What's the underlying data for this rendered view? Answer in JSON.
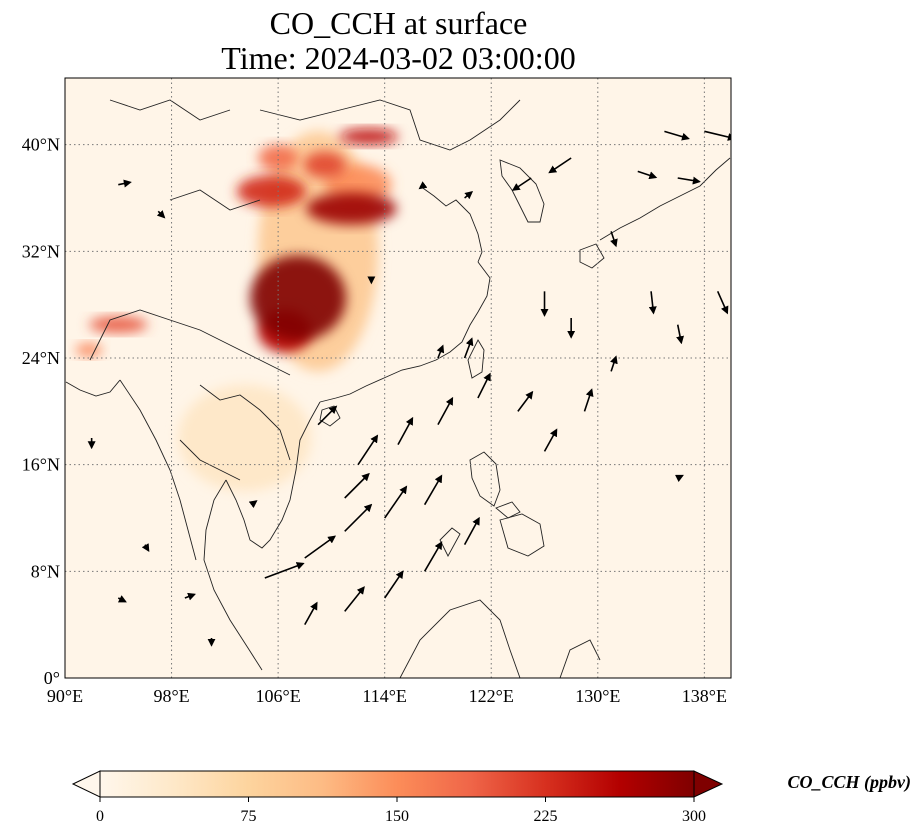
{
  "title": {
    "line1": "CO_CCH at surface",
    "line2": "Time: 2024-03-02 03:00:00"
  },
  "map": {
    "projection": "PlateCarree",
    "lon_range": [
      90,
      140
    ],
    "lat_range": [
      0,
      45
    ],
    "gridlines": "dotted",
    "background_color": "#fff5e8"
  },
  "axes": {
    "x_ticks": [
      {
        "value": 90,
        "label": "90°E"
      },
      {
        "value": 98,
        "label": "98°E"
      },
      {
        "value": 106,
        "label": "106°E"
      },
      {
        "value": 114,
        "label": "114°E"
      },
      {
        "value": 122,
        "label": "122°E"
      },
      {
        "value": 130,
        "label": "130°E"
      },
      {
        "value": 138,
        "label": "138°E"
      }
    ],
    "y_ticks": [
      {
        "value": 0,
        "label": "0°"
      },
      {
        "value": 8,
        "label": "8°N"
      },
      {
        "value": 16,
        "label": "16°N"
      },
      {
        "value": 24,
        "label": "24°N"
      },
      {
        "value": 32,
        "label": "32°N"
      },
      {
        "value": 40,
        "label": "40°N"
      }
    ]
  },
  "colorbar": {
    "label": "CO_CCH (ppbv)",
    "min": 0,
    "max": 300,
    "colormap": "OrRd",
    "extend": "both",
    "ticks": [
      {
        "value": 0,
        "label": "0"
      },
      {
        "value": 75,
        "label": "75"
      },
      {
        "value": 150,
        "label": "150"
      },
      {
        "value": 225,
        "label": "225"
      },
      {
        "value": 300,
        "label": "300"
      }
    ],
    "stops": [
      "#fff7ec",
      "#fee8c8",
      "#fdd49e",
      "#fdbb84",
      "#fc8d59",
      "#ef6548",
      "#d7301f",
      "#b30000",
      "#7f0000"
    ]
  },
  "concentration_fields": [
    {
      "lon": 107.5,
      "lat": 28.5,
      "rx": 3.6,
      "ry": 3.2,
      "value": 300
    },
    {
      "lon": 106.5,
      "lat": 26.0,
      "rx": 2.0,
      "ry": 1.6,
      "value": 260
    },
    {
      "lon": 111.5,
      "lat": 35.2,
      "rx": 3.4,
      "ry": 1.2,
      "value": 280
    },
    {
      "lon": 105.5,
      "lat": 36.5,
      "rx": 2.6,
      "ry": 1.2,
      "value": 230
    },
    {
      "lon": 109.5,
      "lat": 38.5,
      "rx": 1.6,
      "ry": 1.0,
      "value": 210
    },
    {
      "lon": 112.8,
      "lat": 40.6,
      "rx": 2.2,
      "ry": 0.6,
      "value": 250
    },
    {
      "lon": 109.0,
      "lat": 32.0,
      "rx": 4.5,
      "ry": 9.0,
      "value": 90
    },
    {
      "lon": 103.5,
      "lat": 18.0,
      "rx": 5.0,
      "ry": 4.0,
      "value": 40
    },
    {
      "lon": 94.0,
      "lat": 26.5,
      "rx": 2.2,
      "ry": 0.6,
      "value": 200
    },
    {
      "lon": 91.8,
      "lat": 24.6,
      "rx": 1.0,
      "ry": 0.5,
      "value": 160
    },
    {
      "lon": 106.0,
      "lat": 39.0,
      "rx": 1.5,
      "ry": 1.0,
      "value": 180
    },
    {
      "lon": 112.0,
      "lat": 37.0,
      "rx": 2.5,
      "ry": 1.5,
      "value": 150
    }
  ],
  "wind_vectors": [
    {
      "lon": 105,
      "lat": 7.5,
      "u": 3.2,
      "v": 1.2
    },
    {
      "lon": 108,
      "lat": 9,
      "u": 2.5,
      "v": 1.8
    },
    {
      "lon": 111,
      "lat": 11,
      "u": 2.2,
      "v": 2.2
    },
    {
      "lon": 114,
      "lat": 12,
      "u": 1.8,
      "v": 2.6
    },
    {
      "lon": 117,
      "lat": 13,
      "u": 1.4,
      "v": 2.4
    },
    {
      "lon": 112,
      "lat": 16,
      "u": 1.6,
      "v": 2.4
    },
    {
      "lon": 115,
      "lat": 17.5,
      "u": 1.2,
      "v": 2.2
    },
    {
      "lon": 118,
      "lat": 19,
      "u": 1.2,
      "v": 2.2
    },
    {
      "lon": 121,
      "lat": 21,
      "u": 1.0,
      "v": 2.0
    },
    {
      "lon": 109,
      "lat": 19,
      "u": 1.5,
      "v": 1.5
    },
    {
      "lon": 111,
      "lat": 13.5,
      "u": 2.0,
      "v": 2.0
    },
    {
      "lon": 108,
      "lat": 4,
      "u": 1.0,
      "v": 1.8
    },
    {
      "lon": 111,
      "lat": 5,
      "u": 1.6,
      "v": 2.0
    },
    {
      "lon": 114,
      "lat": 6,
      "u": 1.5,
      "v": 2.2
    },
    {
      "lon": 117,
      "lat": 8,
      "u": 1.4,
      "v": 2.4
    },
    {
      "lon": 120,
      "lat": 10,
      "u": 1.2,
      "v": 2.2
    },
    {
      "lon": 124,
      "lat": 20,
      "u": 1.2,
      "v": 1.6
    },
    {
      "lon": 126,
      "lat": 17,
      "u": 1.0,
      "v": 1.8
    },
    {
      "lon": 129,
      "lat": 20,
      "u": 0.6,
      "v": 1.8
    },
    {
      "lon": 131,
      "lat": 23,
      "u": 0.4,
      "v": 1.2
    },
    {
      "lon": 126,
      "lat": 29,
      "u": 0.0,
      "v": -2.0
    },
    {
      "lon": 128,
      "lat": 27,
      "u": 0.0,
      "v": -1.6
    },
    {
      "lon": 134,
      "lat": 29,
      "u": 0.2,
      "v": -1.8
    },
    {
      "lon": 136,
      "lat": 26.5,
      "u": 0.3,
      "v": -1.5
    },
    {
      "lon": 139,
      "lat": 29,
      "u": 0.8,
      "v": -1.8
    },
    {
      "lon": 133,
      "lat": 38,
      "u": 1.5,
      "v": -0.5
    },
    {
      "lon": 136,
      "lat": 37.5,
      "u": 1.8,
      "v": -0.3
    },
    {
      "lon": 135,
      "lat": 41,
      "u": 2.0,
      "v": -0.6
    },
    {
      "lon": 138,
      "lat": 41,
      "u": 2.5,
      "v": -0.6
    },
    {
      "lon": 128,
      "lat": 39,
      "u": -1.8,
      "v": -1.2
    },
    {
      "lon": 125,
      "lat": 37.5,
      "u": -1.5,
      "v": -1.0
    },
    {
      "lon": 131,
      "lat": 33.5,
      "u": 0.4,
      "v": -1.2
    },
    {
      "lon": 120,
      "lat": 24,
      "u": 0.6,
      "v": 1.6
    },
    {
      "lon": 118,
      "lat": 24,
      "u": 0.4,
      "v": 1.0
    },
    {
      "lon": 94,
      "lat": 37,
      "u": 1.0,
      "v": 0.2
    },
    {
      "lon": 97,
      "lat": 35,
      "u": 0.5,
      "v": -0.5
    },
    {
      "lon": 92,
      "lat": 18,
      "u": 0.0,
      "v": -0.8
    },
    {
      "lon": 96,
      "lat": 10,
      "u": 0.3,
      "v": -0.5
    },
    {
      "lon": 99,
      "lat": 6,
      "u": 0.8,
      "v": 0.3
    },
    {
      "lon": 94,
      "lat": 6,
      "u": 0.6,
      "v": -0.3
    },
    {
      "lon": 101,
      "lat": 3,
      "u": 0.0,
      "v": -0.6
    },
    {
      "lon": 104,
      "lat": 13,
      "u": 0.4,
      "v": 0.3
    },
    {
      "lon": 113,
      "lat": 30,
      "u": 0.0,
      "v": -0.4
    },
    {
      "lon": 117,
      "lat": 37,
      "u": -0.4,
      "v": -0.3
    },
    {
      "lon": 120,
      "lat": 36,
      "u": 0.6,
      "v": 0.5
    },
    {
      "lon": 136,
      "lat": 15,
      "u": 0.4,
      "v": 0.2
    }
  ]
}
